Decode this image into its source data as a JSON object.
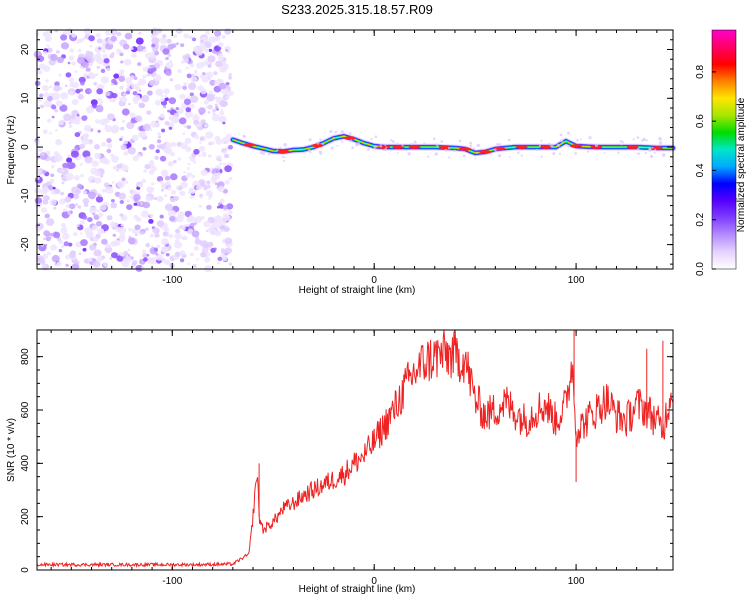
{
  "title": "S233.2025.315.18.57.R09",
  "chart_data": [
    {
      "type": "heatmap",
      "xlabel": "Height of straight line (km)",
      "ylabel": "Frequency (Hz)",
      "xlim": [
        -167,
        148
      ],
      "ylim": [
        -25,
        24
      ],
      "xticks": [
        -100,
        0,
        100
      ],
      "yticks": [
        -20,
        -10,
        0,
        10,
        20
      ],
      "noise_region_x": [
        -167,
        -71
      ],
      "noise_freq_range": [
        -25,
        24
      ],
      "signal_track": {
        "description_x": [
          -70,
          -65,
          -60,
          -55,
          -50,
          -45,
          -40,
          -35,
          -30,
          -25,
          -20,
          -15,
          -10,
          -5,
          0,
          5,
          10,
          20,
          30,
          40,
          45,
          50,
          55,
          60,
          70,
          80,
          90,
          95,
          100,
          110,
          120,
          130,
          140,
          148
        ],
        "freq_hz": [
          1.5,
          0.8,
          0.2,
          -0.3,
          -0.8,
          -0.9,
          -0.6,
          -0.5,
          0.0,
          0.8,
          1.8,
          2.2,
          1.6,
          0.8,
          0.2,
          0.0,
          0.0,
          0.0,
          0.0,
          -0.2,
          -0.4,
          -1.2,
          -1.0,
          -0.4,
          0.0,
          0.0,
          0.0,
          1.2,
          0.2,
          0.0,
          0.0,
          0.0,
          -0.2,
          -0.2
        ]
      },
      "colorbar": {
        "label": "Normalized spectral amplitude",
        "ticks": [
          "0.0",
          "0.2",
          "0.4",
          "0.6",
          "0.8"
        ],
        "range": [
          0,
          0.97
        ],
        "colors": [
          "#ffffff",
          "#e6d3ff",
          "#b48cff",
          "#7f3fff",
          "#5500ff",
          "#0000ff",
          "#00aaff",
          "#00e6c8",
          "#00dc00",
          "#a8e600",
          "#ffe600",
          "#ff8000",
          "#ff0000",
          "#ff0066",
          "#ff00cc"
        ]
      }
    },
    {
      "type": "line",
      "xlabel": "Height of straight line (km)",
      "ylabel": "SNR (10 * v/v)",
      "xlim": [
        -167,
        148
      ],
      "ylim": [
        0,
        900
      ],
      "xticks": [
        -100,
        0,
        100
      ],
      "yticks": [
        0,
        200,
        400,
        600,
        800
      ],
      "color": "#ee2222",
      "x": [
        -167,
        -140,
        -110,
        -90,
        -70,
        -62,
        -60,
        -58,
        -57,
        -55,
        -50,
        -45,
        -40,
        -35,
        -30,
        -25,
        -20,
        -15,
        -10,
        -5,
        0,
        5,
        10,
        15,
        20,
        25,
        30,
        35,
        40,
        45,
        50,
        55,
        60,
        65,
        70,
        75,
        80,
        85,
        90,
        95,
        98,
        100,
        105,
        110,
        115,
        120,
        125,
        130,
        135,
        140,
        143,
        145,
        148
      ],
      "y": [
        20,
        20,
        20,
        20,
        22,
        60,
        200,
        380,
        200,
        150,
        180,
        230,
        250,
        280,
        300,
        320,
        340,
        360,
        400,
        430,
        480,
        540,
        600,
        680,
        740,
        780,
        800,
        810,
        800,
        790,
        640,
        580,
        600,
        630,
        590,
        560,
        600,
        620,
        560,
        620,
        780,
        520,
        560,
        600,
        640,
        580,
        560,
        620,
        600,
        560,
        520,
        600,
        700
      ],
      "spikes": [
        {
          "x": -57,
          "y": 400
        },
        {
          "x": 30,
          "y": 820
        },
        {
          "x": 99,
          "y": 900
        },
        {
          "x": 100,
          "y": 330
        },
        {
          "x": 135,
          "y": 830
        },
        {
          "x": 143,
          "y": 860
        }
      ]
    }
  ]
}
